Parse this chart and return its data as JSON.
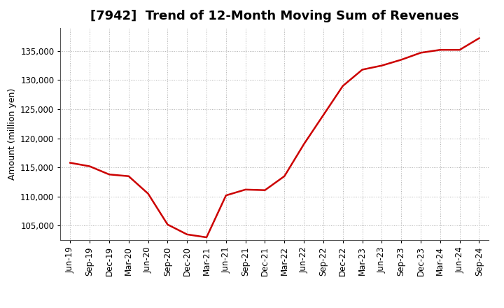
{
  "title": "[7942]  Trend of 12-Month Moving Sum of Revenues",
  "ylabel": "Amount (million yen)",
  "line_color": "#cc0000",
  "background_color": "#ffffff",
  "plot_bg_color": "#ffffff",
  "grid_color": "#b0b0b0",
  "xlabels": [
    "Jun-19",
    "Sep-19",
    "Dec-19",
    "Mar-20",
    "Jun-20",
    "Sep-20",
    "Dec-20",
    "Mar-21",
    "Jun-21",
    "Sep-21",
    "Dec-21",
    "Mar-22",
    "Jun-22",
    "Sep-22",
    "Dec-22",
    "Mar-23",
    "Jun-23",
    "Sep-23",
    "Dec-23",
    "Mar-24",
    "Jun-24",
    "Sep-24"
  ],
  "x_values": [
    0,
    1,
    2,
    3,
    4,
    5,
    6,
    7,
    8,
    9,
    10,
    11,
    12,
    13,
    14,
    15,
    16,
    17,
    18,
    19,
    20,
    21
  ],
  "y_values": [
    115800,
    115200,
    113800,
    113500,
    110500,
    105200,
    103500,
    103000,
    110200,
    111200,
    111100,
    113500,
    119000,
    124000,
    129000,
    131800,
    132500,
    133500,
    134700,
    135200,
    135200,
    137200
  ],
  "ylim": [
    102500,
    139000
  ],
  "yticks": [
    105000,
    110000,
    115000,
    120000,
    125000,
    130000,
    135000
  ],
  "title_fontsize": 13,
  "axis_label_fontsize": 9,
  "tick_fontsize": 8.5,
  "line_width": 1.8
}
